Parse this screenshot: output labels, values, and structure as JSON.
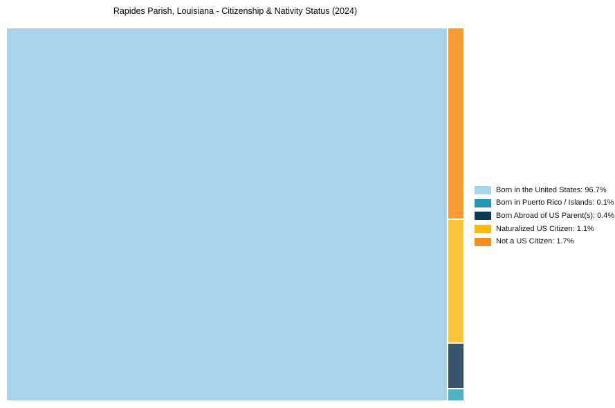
{
  "title": "Rapides Parish, Louisiana - Citizenship & Nativity Status (2024)",
  "chart_data": {
    "type": "treemap",
    "title": "Rapides Parish, Louisiana - Citizenship & Nativity Status (2024)",
    "unit": "%",
    "categories": [
      "Born in the United States",
      "Born in Puerto Rico / Islands",
      "Born Abroad of US Parent(s)",
      "Naturalized US Citizen",
      "Not a US Citizen"
    ],
    "values": [
      96.7,
      0.1,
      0.4,
      1.1,
      1.7
    ],
    "legend_position": "right",
    "background_color": "#ffffff",
    "legend": [
      {
        "label": "Born in the United States",
        "value": 96.7,
        "text": "Born in the United States: 96.7%",
        "swatch": "#A5D4EB",
        "fill": "#A7D4EB"
      },
      {
        "label": "Born in Puerto Rico / Islands",
        "value": 0.1,
        "text": "Born in Puerto Rico / Islands: 0.1%",
        "swatch": "#2497B6",
        "fill": "#4CB2C8"
      },
      {
        "label": "Born Abroad of US Parent(s)",
        "value": 0.4,
        "text": "Born Abroad of US Parent(s): 0.4%",
        "swatch": "#0D3A53",
        "fill": "#36566B"
      },
      {
        "label": "Naturalized US Citizen",
        "value": 1.1,
        "text": "Naturalized US Citizen: 1.1%",
        "swatch": "#FDB813",
        "fill": "#FDC33A"
      },
      {
        "label": "Not a US Citizen",
        "value": 1.7,
        "text": "Not a US Citizen: 1.7%",
        "swatch": "#F68D1E",
        "fill": "#F99D33"
      }
    ]
  }
}
